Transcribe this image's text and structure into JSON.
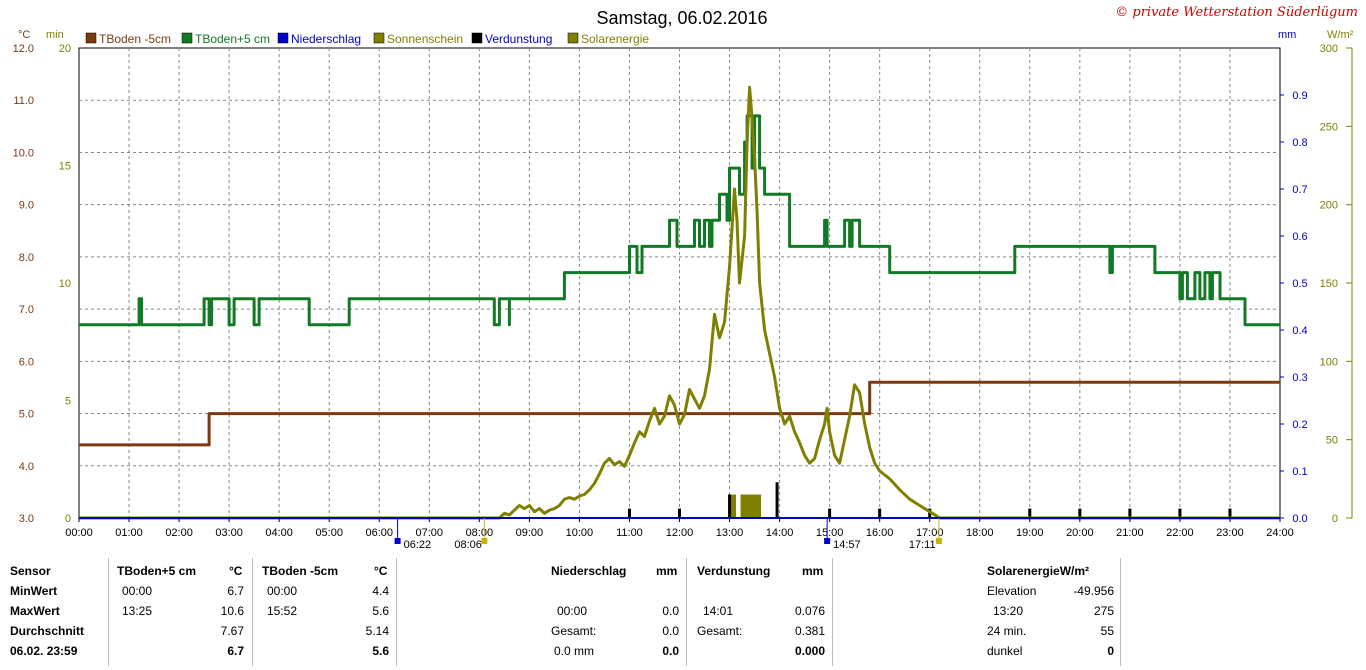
{
  "title": "Samstag, 06.02.2016",
  "copyright": "© private Wetterstation Süderlügum",
  "legend": [
    {
      "label": "TBoden -5cm",
      "color": "#7a3b10"
    },
    {
      "label": "TBoden+5 cm",
      "color": "#107a25"
    },
    {
      "label": "Niederschlag",
      "color": "#0000cc"
    },
    {
      "label": "Sonnenschein",
      "color": "#808000"
    },
    {
      "label": "Verdunstung",
      "color": "#000000"
    },
    {
      "label": "Solarenergie",
      "color": "#808000"
    }
  ],
  "axis_units": {
    "celsius": "°C",
    "min": "min",
    "mm": "mm",
    "wm2": "W/m²"
  },
  "chart_data": {
    "type": "line",
    "x_range": [
      "00:00",
      "24:00"
    ],
    "x_ticks": [
      "00:00",
      "01:00",
      "02:00",
      "03:00",
      "04:00",
      "05:00",
      "06:00",
      "07:00",
      "08:00",
      "09:00",
      "10:00",
      "11:00",
      "12:00",
      "13:00",
      "14:00",
      "15:00",
      "16:00",
      "17:00",
      "18:00",
      "19:00",
      "20:00",
      "21:00",
      "22:00",
      "23:00",
      "24:00"
    ],
    "y_celsius_ticks": [
      "3.0",
      "4.0",
      "5.0",
      "6.0",
      "7.0",
      "8.0",
      "9.0",
      "10.0",
      "11.0",
      "12.0"
    ],
    "y_celsius_range": [
      3,
      12
    ],
    "y_min_ticks": [
      "0",
      "5",
      "10",
      "15",
      "20"
    ],
    "y_min_range": [
      0,
      20
    ],
    "y_mm_ticks": [
      "0.0",
      "0.1",
      "0.2",
      "0.3",
      "0.4",
      "0.5",
      "0.6",
      "0.7",
      "0.8",
      "0.9"
    ],
    "y_mm_range": [
      0,
      1.0
    ],
    "y_wm2_ticks": [
      "0",
      "50",
      "100",
      "150",
      "200",
      "250",
      "300"
    ],
    "y_wm2_range": [
      0,
      300
    ],
    "sun_markers": {
      "sunrise_dawn": "06:22",
      "sunrise": "08:06",
      "sunset": "17:11",
      "noon": "14:57"
    },
    "series": [
      {
        "name": "TBoden -5cm",
        "axis": "celsius",
        "color": "#7a3b10",
        "points": [
          [
            0,
            4.4
          ],
          [
            2.6,
            4.4
          ],
          [
            2.6,
            5.0
          ],
          [
            15.8,
            5.0
          ],
          [
            15.8,
            5.6
          ],
          [
            24,
            5.6
          ]
        ]
      },
      {
        "name": "TBoden+5 cm",
        "axis": "celsius",
        "color": "#107a25",
        "points": [
          [
            0,
            6.7
          ],
          [
            1.2,
            6.7
          ],
          [
            1.2,
            7.2
          ],
          [
            1.25,
            7.2
          ],
          [
            1.25,
            6.7
          ],
          [
            2.5,
            6.7
          ],
          [
            2.5,
            7.2
          ],
          [
            2.6,
            7.2
          ],
          [
            2.6,
            6.7
          ],
          [
            2.65,
            6.7
          ],
          [
            2.65,
            7.2
          ],
          [
            3.0,
            7.2
          ],
          [
            3.0,
            6.7
          ],
          [
            3.1,
            6.7
          ],
          [
            3.1,
            7.2
          ],
          [
            3.5,
            7.2
          ],
          [
            3.5,
            6.7
          ],
          [
            3.6,
            6.7
          ],
          [
            3.6,
            7.2
          ],
          [
            4.6,
            7.2
          ],
          [
            4.6,
            6.7
          ],
          [
            5.4,
            6.7
          ],
          [
            5.4,
            7.2
          ],
          [
            8.3,
            7.2
          ],
          [
            8.3,
            6.7
          ],
          [
            8.4,
            6.7
          ],
          [
            8.4,
            7.2
          ],
          [
            8.4,
            7.2
          ],
          [
            8.6,
            7.2
          ],
          [
            8.6,
            6.7
          ],
          [
            8.6,
            6.7
          ],
          [
            8.6,
            7.2
          ],
          [
            9.7,
            7.2
          ],
          [
            9.7,
            7.7
          ],
          [
            11.0,
            7.7
          ],
          [
            11.0,
            8.2
          ],
          [
            11.15,
            8.2
          ],
          [
            11.15,
            7.7
          ],
          [
            11.25,
            7.7
          ],
          [
            11.25,
            8.2
          ],
          [
            11.8,
            8.2
          ],
          [
            11.8,
            8.7
          ],
          [
            11.95,
            8.7
          ],
          [
            11.95,
            8.2
          ],
          [
            12.3,
            8.2
          ],
          [
            12.3,
            8.7
          ],
          [
            12.4,
            8.7
          ],
          [
            12.4,
            8.2
          ],
          [
            12.5,
            8.2
          ],
          [
            12.5,
            8.7
          ],
          [
            12.6,
            8.7
          ],
          [
            12.6,
            8.2
          ],
          [
            12.65,
            8.2
          ],
          [
            12.65,
            8.7
          ],
          [
            12.8,
            8.7
          ],
          [
            12.8,
            9.2
          ],
          [
            12.95,
            9.2
          ],
          [
            12.95,
            8.7
          ],
          [
            13.0,
            8.7
          ],
          [
            13.0,
            9.7
          ],
          [
            13.2,
            9.7
          ],
          [
            13.2,
            9.2
          ],
          [
            13.3,
            9.2
          ],
          [
            13.3,
            10.2
          ],
          [
            13.35,
            10.2
          ],
          [
            13.35,
            10.7
          ],
          [
            13.45,
            10.7
          ],
          [
            13.45,
            9.7
          ],
          [
            13.5,
            9.7
          ],
          [
            13.5,
            10.7
          ],
          [
            13.6,
            10.7
          ],
          [
            13.6,
            9.7
          ],
          [
            13.7,
            9.7
          ],
          [
            13.7,
            9.2
          ],
          [
            14.2,
            9.2
          ],
          [
            14.2,
            8.2
          ],
          [
            14.9,
            8.2
          ],
          [
            14.9,
            8.7
          ],
          [
            14.95,
            8.7
          ],
          [
            14.95,
            8.2
          ],
          [
            15.3,
            8.2
          ],
          [
            15.3,
            8.7
          ],
          [
            15.4,
            8.7
          ],
          [
            15.4,
            8.2
          ],
          [
            15.45,
            8.2
          ],
          [
            15.45,
            8.7
          ],
          [
            15.6,
            8.7
          ],
          [
            15.6,
            8.2
          ],
          [
            16.2,
            8.2
          ],
          [
            16.2,
            7.7
          ],
          [
            18.7,
            7.7
          ],
          [
            18.7,
            8.2
          ],
          [
            20.6,
            8.2
          ],
          [
            20.6,
            7.7
          ],
          [
            20.65,
            7.7
          ],
          [
            20.65,
            8.2
          ],
          [
            21.5,
            8.2
          ],
          [
            21.5,
            7.7
          ],
          [
            22.0,
            7.7
          ],
          [
            22.0,
            7.2
          ],
          [
            22.05,
            7.2
          ],
          [
            22.05,
            7.7
          ],
          [
            22.15,
            7.7
          ],
          [
            22.15,
            7.2
          ],
          [
            22.3,
            7.2
          ],
          [
            22.3,
            7.7
          ],
          [
            22.4,
            7.7
          ],
          [
            22.4,
            7.2
          ],
          [
            22.5,
            7.2
          ],
          [
            22.5,
            7.7
          ],
          [
            22.6,
            7.7
          ],
          [
            22.6,
            7.2
          ],
          [
            22.65,
            7.2
          ],
          [
            22.65,
            7.7
          ],
          [
            22.8,
            7.7
          ],
          [
            22.8,
            7.2
          ],
          [
            23.3,
            7.2
          ],
          [
            23.3,
            6.7
          ],
          [
            24,
            6.7
          ]
        ]
      },
      {
        "name": "Solarenergie",
        "axis": "wm2",
        "color": "#808000",
        "points": [
          [
            0,
            0
          ],
          [
            8.4,
            0
          ],
          [
            8.5,
            3
          ],
          [
            8.6,
            2
          ],
          [
            8.7,
            5
          ],
          [
            8.8,
            8
          ],
          [
            8.9,
            6
          ],
          [
            9.0,
            8
          ],
          [
            9.1,
            4
          ],
          [
            9.2,
            6
          ],
          [
            9.3,
            3
          ],
          [
            9.4,
            5
          ],
          [
            9.5,
            6
          ],
          [
            9.6,
            8
          ],
          [
            9.7,
            12
          ],
          [
            9.8,
            13
          ],
          [
            9.9,
            12
          ],
          [
            10.0,
            14
          ],
          [
            10.1,
            15
          ],
          [
            10.2,
            18
          ],
          [
            10.3,
            22
          ],
          [
            10.4,
            28
          ],
          [
            10.5,
            35
          ],
          [
            10.6,
            38
          ],
          [
            10.7,
            34
          ],
          [
            10.8,
            36
          ],
          [
            10.9,
            33
          ],
          [
            11.0,
            40
          ],
          [
            11.1,
            48
          ],
          [
            11.2,
            55
          ],
          [
            11.3,
            52
          ],
          [
            11.4,
            62
          ],
          [
            11.5,
            70
          ],
          [
            11.6,
            60
          ],
          [
            11.7,
            65
          ],
          [
            11.8,
            78
          ],
          [
            11.9,
            72
          ],
          [
            12.0,
            60
          ],
          [
            12.1,
            66
          ],
          [
            12.2,
            82
          ],
          [
            12.3,
            76
          ],
          [
            12.4,
            70
          ],
          [
            12.5,
            78
          ],
          [
            12.6,
            95
          ],
          [
            12.7,
            130
          ],
          [
            12.8,
            115
          ],
          [
            12.9,
            125
          ],
          [
            13.0,
            160
          ],
          [
            13.1,
            210
          ],
          [
            13.15,
            190
          ],
          [
            13.2,
            150
          ],
          [
            13.3,
            180
          ],
          [
            13.35,
            240
          ],
          [
            13.4,
            275
          ],
          [
            13.45,
            255
          ],
          [
            13.5,
            230
          ],
          [
            13.55,
            195
          ],
          [
            13.6,
            150
          ],
          [
            13.7,
            120
          ],
          [
            13.8,
            105
          ],
          [
            13.9,
            90
          ],
          [
            14.0,
            70
          ],
          [
            14.1,
            60
          ],
          [
            14.2,
            65
          ],
          [
            14.3,
            55
          ],
          [
            14.4,
            48
          ],
          [
            14.5,
            40
          ],
          [
            14.6,
            35
          ],
          [
            14.7,
            38
          ],
          [
            14.8,
            50
          ],
          [
            14.9,
            60
          ],
          [
            14.95,
            70
          ],
          [
            15.0,
            55
          ],
          [
            15.1,
            40
          ],
          [
            15.2,
            35
          ],
          [
            15.3,
            50
          ],
          [
            15.4,
            65
          ],
          [
            15.5,
            85
          ],
          [
            15.6,
            80
          ],
          [
            15.7,
            60
          ],
          [
            15.8,
            45
          ],
          [
            15.9,
            35
          ],
          [
            16.0,
            30
          ],
          [
            16.2,
            25
          ],
          [
            16.4,
            18
          ],
          [
            16.6,
            12
          ],
          [
            16.8,
            8
          ],
          [
            17.0,
            4
          ],
          [
            17.15,
            1
          ],
          [
            17.2,
            0
          ],
          [
            24,
            0
          ]
        ]
      },
      {
        "name": "Sonnenschein",
        "axis": "min",
        "color": "#808000",
        "type": "bar",
        "points": [
          [
            13.05,
            1
          ],
          [
            13.1,
            1
          ],
          [
            13.25,
            1
          ],
          [
            13.3,
            1
          ],
          [
            13.35,
            1
          ],
          [
            13.4,
            1
          ],
          [
            13.45,
            1
          ],
          [
            13.5,
            1
          ],
          [
            13.55,
            1
          ],
          [
            13.6,
            1
          ]
        ]
      },
      {
        "name": "Verdunstung",
        "axis": "mm",
        "color": "#000000",
        "type": "bar",
        "points": [
          [
            11.0,
            0.02
          ],
          [
            12.0,
            0.02
          ],
          [
            13.0,
            0.05
          ],
          [
            13.95,
            0.076
          ],
          [
            15.0,
            0.02
          ],
          [
            16.0,
            0.02
          ],
          [
            17.0,
            0.02
          ],
          [
            19.0,
            0.02
          ],
          [
            20.0,
            0.02
          ],
          [
            21.0,
            0.02
          ],
          [
            22.0,
            0.02
          ],
          [
            23.0,
            0.02
          ]
        ]
      }
    ]
  },
  "table": {
    "col1": {
      "header": "Sensor",
      "rows": [
        "MinWert",
        "MaxWert",
        "Durchschnitt",
        "06.02. 23:59"
      ]
    },
    "tb5": {
      "header": "TBoden+5 cm",
      "unit": "°C",
      "rows": [
        [
          "00:00",
          "6.7"
        ],
        [
          "13:25",
          "10.6"
        ],
        [
          "",
          "7.67"
        ],
        [
          "",
          "6.7"
        ]
      ]
    },
    "tbm5": {
      "header": "TBoden -5cm",
      "unit": "°C",
      "rows": [
        [
          "00:00",
          "4.4"
        ],
        [
          "15:52",
          "5.6"
        ],
        [
          "",
          "5.14"
        ],
        [
          "",
          "5.6"
        ]
      ]
    },
    "nied": {
      "header": "Niederschlag",
      "unit": "mm",
      "rows": [
        [
          "",
          ""
        ],
        [
          "00:00",
          "0.0"
        ],
        [
          "Gesamt:",
          "0.0"
        ],
        [
          "0.0 mm",
          "0.0"
        ]
      ]
    },
    "verd": {
      "header": "Verdunstung",
      "unit": "mm",
      "rows": [
        [
          "",
          ""
        ],
        [
          "14:01",
          "0.076"
        ],
        [
          "Gesamt:",
          "0.381"
        ],
        [
          "",
          "0.000"
        ]
      ]
    },
    "solar": {
      "header": "SolarenergieW/m²",
      "rows": [
        [
          "Elevation",
          "-49.956"
        ],
        [
          "13:20",
          "275"
        ],
        [
          "24 min.",
          "55"
        ],
        [
          "dunkel",
          "0"
        ]
      ]
    }
  }
}
